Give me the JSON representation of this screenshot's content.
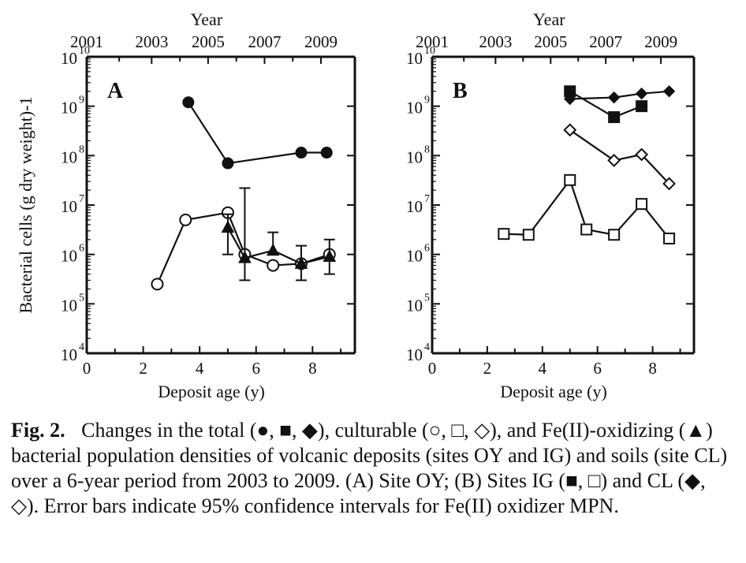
{
  "chart_data": [
    {
      "type": "scatter",
      "panel": "A",
      "xlabel": "Deposit age (y)",
      "ylabel": "Bacterial cells (g dry weight)-1",
      "x2label": "Year",
      "xlim": [
        0,
        9.5
      ],
      "ylim_log10": [
        4,
        10
      ],
      "yscale": "log",
      "x_ticks": [
        0,
        2,
        4,
        6,
        8
      ],
      "y_ticks_exp": [
        4,
        5,
        6,
        7,
        8,
        9,
        10
      ],
      "x2_ticks": [
        {
          "label": "2001",
          "age": 0
        },
        {
          "label": "2003",
          "age": 2.3
        },
        {
          "label": "2005",
          "age": 4.3
        },
        {
          "label": "2007",
          "age": 6.3
        },
        {
          "label": "2009",
          "age": 8.3
        }
      ],
      "series": [
        {
          "marker": "filled-circle",
          "points": [
            [
              3.6,
              1200000000.0
            ],
            [
              5.0,
              70000000.0
            ],
            [
              7.6,
              115000000.0
            ],
            [
              8.5,
              115000000.0
            ]
          ]
        },
        {
          "marker": "open-circle",
          "points": [
            [
              2.5,
              250000.0
            ],
            [
              3.5,
              5000000.0
            ],
            [
              5.0,
              7000000.0
            ],
            [
              5.6,
              1000000.0
            ],
            [
              6.6,
              600000.0
            ],
            [
              7.6,
              650000.0
            ],
            [
              8.6,
              1000000.0
            ]
          ]
        },
        {
          "marker": "filled-triangle",
          "points": [
            [
              5.0,
              3500000.0
            ],
            [
              5.6,
              850000.0
            ],
            [
              6.6,
              1200000.0
            ],
            [
              7.6,
              650000.0
            ],
            [
              8.6,
              900000.0
            ]
          ],
          "error_low": [
            1000000.0,
            300000.0,
            null,
            300000.0,
            400000.0
          ],
          "error_high": [
            6500000.0,
            22000000.0,
            2800000.0,
            1500000.0,
            2000000.0
          ]
        }
      ]
    },
    {
      "type": "scatter",
      "panel": "B",
      "xlabel": "Deposit age (y)",
      "x2label": "Year",
      "xlim": [
        0,
        9.5
      ],
      "ylim_log10": [
        4,
        10
      ],
      "yscale": "log",
      "x_ticks": [
        0,
        2,
        4,
        6,
        8
      ],
      "y_ticks_exp": [
        4,
        5,
        6,
        7,
        8,
        9,
        10
      ],
      "x2_ticks": [
        {
          "label": "2001",
          "age": 0
        },
        {
          "label": "2003",
          "age": 2.3
        },
        {
          "label": "2005",
          "age": 4.3
        },
        {
          "label": "2007",
          "age": 6.3
        },
        {
          "label": "2009",
          "age": 8.3
        }
      ],
      "series": [
        {
          "marker": "filled-square",
          "points": [
            [
              5.0,
              2000000000.0
            ],
            [
              6.6,
              600000000.0
            ],
            [
              7.6,
              1000000000.0
            ]
          ]
        },
        {
          "marker": "filled-diamond",
          "points": [
            [
              5.0,
              1400000000.0
            ],
            [
              6.6,
              1500000000.0
            ],
            [
              7.6,
              1800000000.0
            ],
            [
              8.6,
              2000000000.0
            ]
          ]
        },
        {
          "marker": "open-diamond",
          "points": [
            [
              5.0,
              330000000.0
            ],
            [
              6.6,
              80000000.0
            ],
            [
              7.6,
              105000000.0
            ],
            [
              8.6,
              27000000.0
            ]
          ]
        },
        {
          "marker": "open-square",
          "points": [
            [
              2.6,
              2600000.0
            ],
            [
              3.5,
              2500000.0
            ],
            [
              5.0,
              32000000.0
            ],
            [
              5.6,
              3200000.0
            ],
            [
              6.6,
              2500000.0
            ],
            [
              7.6,
              10500000.0
            ],
            [
              8.6,
              2100000.0
            ]
          ]
        }
      ]
    }
  ],
  "caption": {
    "label": "Fig.  2.",
    "text": "Changes in the total (●, ■, ◆), culturable (○, □, ◇), and Fe(II)-oxidizing (▲) bacterial population densities of volcanic deposits (sites OY and IG) and soils (site CL) over a 6-year period from 2003 to 2009. (A) Site OY; (B) Sites IG (■, □) and CL (◆, ◇). Error bars indicate 95% confidence intervals for Fe(II) oxidizer MPN."
  }
}
